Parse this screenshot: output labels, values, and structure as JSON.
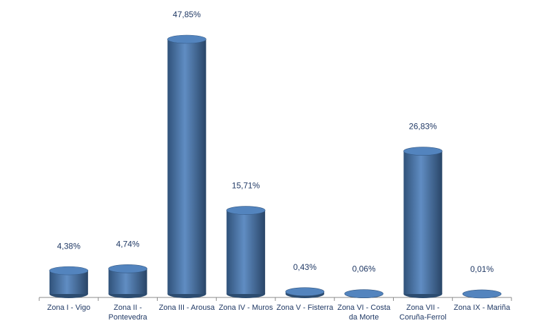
{
  "chart_data": {
    "type": "bar",
    "categories": [
      "Zona I - Vigo",
      "Zona II - Pontevedra",
      "Zona III - Arousa",
      "Zona IV - Muros",
      "Zona V - Fisterra",
      "Zona VI - Costa da Morte",
      "Zona VII - Coruña-Ferrol",
      "Zona IX - Mariña"
    ],
    "values": [
      4.38,
      4.74,
      47.85,
      15.71,
      0.43,
      0.06,
      26.83,
      0.01
    ],
    "value_labels": [
      "4,38%",
      "4,74%",
      "47,85%",
      "15,71%",
      "0,43%",
      "0,06%",
      "26,83%",
      "0,01%"
    ],
    "color": "#4a7ebb"
  }
}
